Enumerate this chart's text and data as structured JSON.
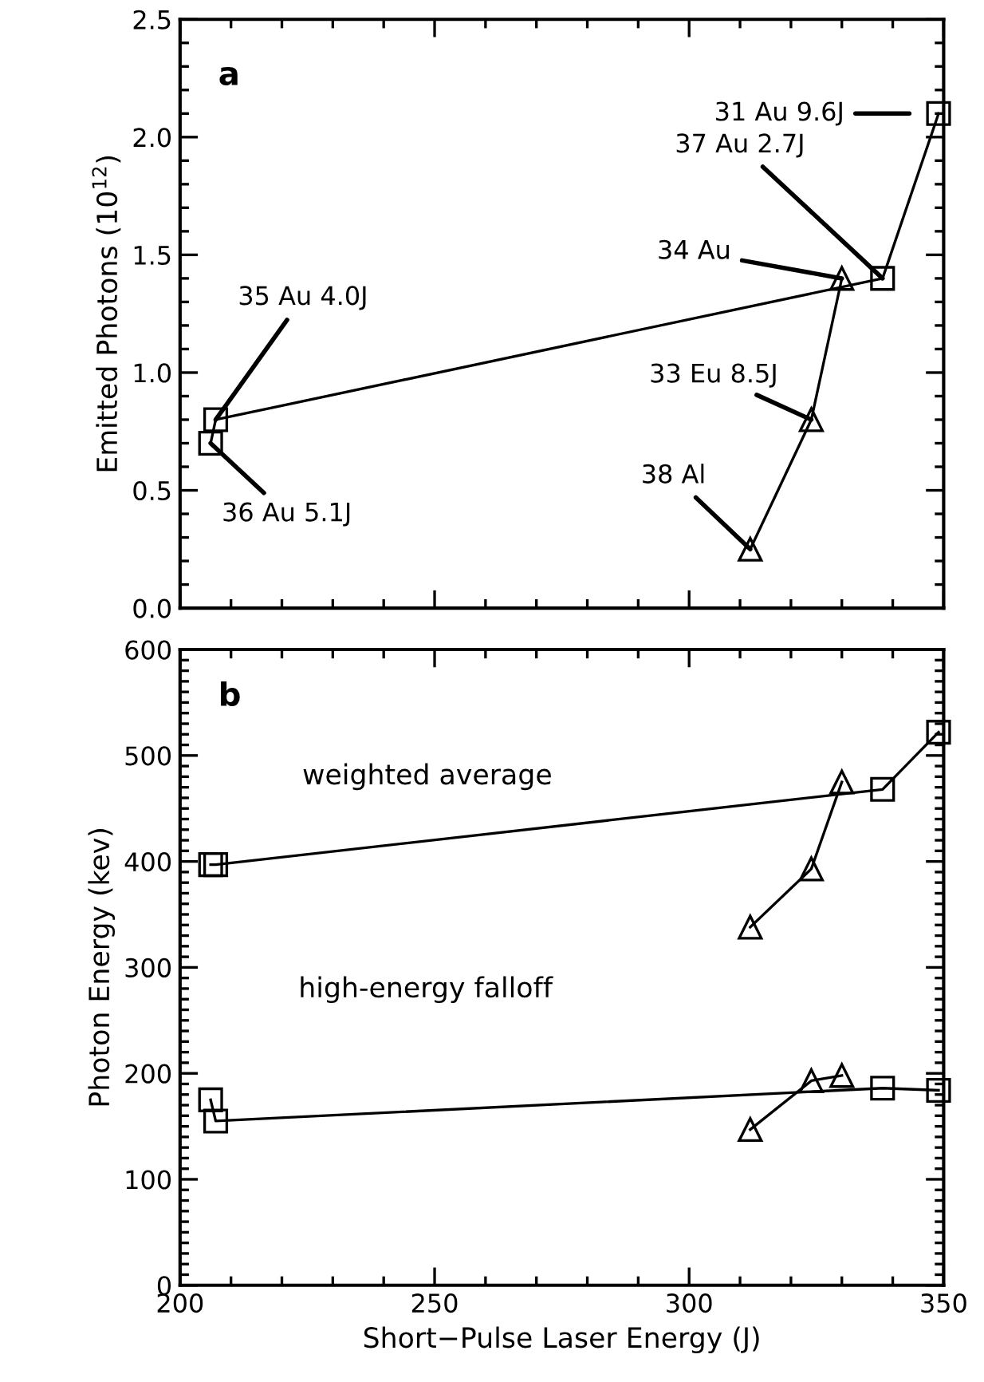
{
  "chart_data": [
    {
      "type": "line",
      "ylabel": "Emitted Photons (10$^{12}$)",
      "xlim": [
        200,
        350
      ],
      "xticks": [
        200,
        250,
        300,
        350
      ],
      "ylim": [
        0,
        2.5
      ],
      "yticks": [
        {
          "value": 0,
          "label": "0.0"
        },
        {
          "value": 0.5,
          "label": "0.5"
        },
        {
          "value": 1,
          "label": "1.0"
        },
        {
          "value": 1.5,
          "label": "1.5"
        },
        {
          "value": 2,
          "label": "2.0"
        },
        {
          "value": 2.5,
          "label": "2.5"
        }
      ],
      "tick_labels": "y",
      "grid": false,
      "legend": false,
      "line_style": "solid",
      "series": [
        {
          "color": "#000000",
          "marker": "square",
          "x": [
            206,
            207,
            338,
            349
          ],
          "values": [
            0.7,
            0.8,
            1.4,
            2.1
          ]
        },
        {
          "color": "#000000",
          "marker": "triangle",
          "x": [
            312,
            324,
            330
          ],
          "values": [
            0.25,
            0.8,
            1.4
          ]
        }
      ],
      "annotations": [
        "a",
        "31 Au 9.6J",
        {
          "text": "37 Au 2.7J",
          "x": 338,
          "y": 1.4
        },
        {
          "text": "34 Au",
          "x": 330,
          "y": 1.4
        },
        {
          "text": "35 Au 4.0J",
          "x": 207,
          "y": 0.8
        },
        {
          "text": "36 Au 5.1J",
          "x": 206,
          "y": 0.7
        },
        {
          "text": "33 Eu 8.5J",
          "x": 324,
          "y": 0.8
        },
        {
          "text": "38 Al",
          "x": 312,
          "y": 0.25
        }
      ]
    },
    {
      "type": "line",
      "xlabel": "Short−Pulse Laser Energy (J)",
      "ylabel": "Photon Energy (kev)",
      "xlim": [
        200,
        350
      ],
      "xticks": [
        200,
        250,
        300,
        350
      ],
      "ylim": [
        0,
        600
      ],
      "yticks": [
        0,
        100,
        200,
        300,
        400,
        500,
        600
      ],
      "grid": false,
      "legend": false,
      "line_style": "solid",
      "series": [
        {
          "color": "#000000",
          "marker": "square",
          "x": [
            206,
            207,
            338,
            349
          ],
          "values": [
            397,
            397,
            468,
            522
          ]
        },
        {
          "color": "#000000",
          "marker": "triangle",
          "x": [
            312,
            324,
            330
          ],
          "values": [
            338,
            393,
            475
          ]
        },
        {
          "color": "#000000",
          "marker": "square",
          "x": [
            206,
            207,
            338,
            349
          ],
          "values": [
            175,
            155,
            186,
            184
          ]
        },
        {
          "color": "#000000",
          "marker": "triangle",
          "x": [
            312,
            324,
            330
          ],
          "values": [
            147,
            193,
            198
          ]
        }
      ],
      "annotations": [
        "b",
        "weighted average",
        "high-energy falloff"
      ]
    }
  ]
}
